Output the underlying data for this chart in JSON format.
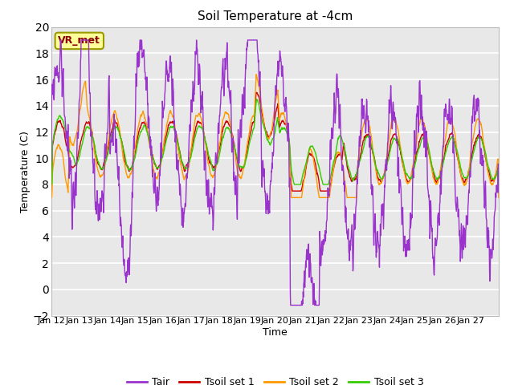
{
  "title": "Soil Temperature at -4cm",
  "xlabel": "Time",
  "ylabel": "Temperature (C)",
  "ylim": [
    -2,
    20
  ],
  "yticks": [
    -2,
    0,
    2,
    4,
    6,
    8,
    10,
    12,
    14,
    16,
    18,
    20
  ],
  "x_labels": [
    "Jan 12",
    "Jan 13",
    "Jan 14",
    "Jan 15",
    "Jan 16",
    "Jan 17",
    "Jan 18",
    "Jan 19",
    "Jan 20",
    "Jan 21",
    "Jan 22",
    "Jan 23",
    "Jan 24",
    "Jan 25",
    "Jan 26",
    "Jan 27"
  ],
  "annotation_text": "VR_met",
  "colors": {
    "Tair": "#9933cc",
    "Tsoil1": "#cc0000",
    "Tsoil2": "#ff9900",
    "Tsoil3": "#33cc00"
  },
  "legend_labels": [
    "Tair",
    "Tsoil set 1",
    "Tsoil set 2",
    "Tsoil set 3"
  ],
  "plot_bg_color": "#e8e8e8",
  "grid_color": "#ffffff",
  "title_fontsize": 11,
  "axis_fontsize": 9,
  "tick_fontsize": 8,
  "line_width": 1.0
}
